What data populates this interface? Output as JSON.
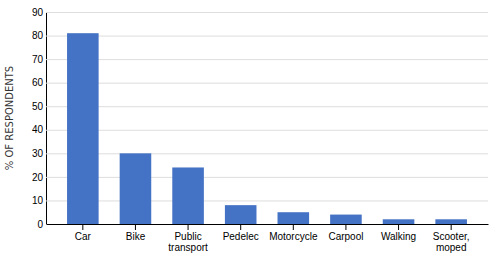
{
  "chart_data": {
    "type": "bar",
    "categories": [
      "Car",
      "Bike",
      "Public\ntransport",
      "Pedelec",
      "Motorcycle",
      "Carpool",
      "Walking",
      "Scooter,\nmoped"
    ],
    "values": [
      81,
      30,
      24,
      8,
      5,
      4,
      2,
      2
    ],
    "color": "#4472C4",
    "ylabel": "% OF RESPONDENTS",
    "ylim": [
      0,
      90
    ],
    "yticks": [
      0,
      10,
      20,
      30,
      40,
      50,
      60,
      70,
      80,
      90
    ],
    "grid": true
  }
}
